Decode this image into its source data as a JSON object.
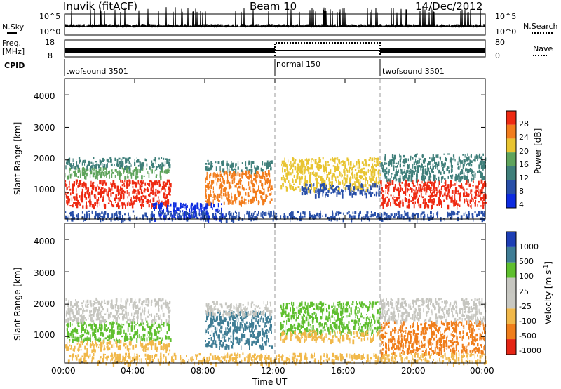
{
  "header": {
    "station": "Inuvik (fitACF)",
    "beam": "Beam 10",
    "date": "14/Dec/2012"
  },
  "top_panels": {
    "nsky_label": "N.Sky",
    "nsky_ticks": [
      "10^5",
      "10^0"
    ],
    "nsearch_label": "N.Search",
    "nsearch_ticks": [
      "10^5",
      "10^0"
    ],
    "freq_label_1": "Freq.",
    "freq_label_2": "[MHz]",
    "freq_ticks": [
      "18",
      "8"
    ],
    "nave_label": "Nave",
    "nave_ticks": [
      "80",
      "0"
    ],
    "cpid_label": "CPID",
    "cpid_segments": [
      {
        "label": "twofsound 3501",
        "start_hour": 0,
        "end_hour": 12
      },
      {
        "label": "normal 150",
        "start_hour": 12,
        "end_hour": 18
      },
      {
        "label": "twofsound 3501",
        "start_hour": 18,
        "end_hour": 24
      }
    ],
    "freq_level_mhz": {
      "twofsound": 10,
      "normal": 10
    },
    "nave_dotted_level": {
      "normal": 80
    }
  },
  "x_axis": {
    "label": "Time UT",
    "ticks": [
      "00:00",
      "04:00",
      "08:00",
      "12:00",
      "16:00",
      "20:00",
      "00:00"
    ],
    "range_hours": [
      0,
      24
    ],
    "dashed_lines_hours": [
      12,
      18
    ]
  },
  "y_axis": {
    "label": "Slant Range [km]",
    "ticks": [
      "1000",
      "2000",
      "3000",
      "4000"
    ],
    "range_km": [
      180,
      4500
    ]
  },
  "colorbars": {
    "power": {
      "title": "Power [dB]",
      "labels": [
        "4",
        "8",
        "12",
        "16",
        "20",
        "24",
        "28"
      ],
      "colors": [
        "#0d2be0",
        "#284fa8",
        "#3f7f7a",
        "#5fa45c",
        "#e8c431",
        "#f27d1d",
        "#ee2a12"
      ]
    },
    "velocity": {
      "title": "Velocity [m s",
      "title_sup": "-1",
      "title_end": "]",
      "labels": [
        "1000",
        "500",
        "100",
        "25",
        "-25",
        "-100",
        "-500",
        "-1000"
      ],
      "colors": [
        "#1e3fb5",
        "#3f7d95",
        "#5fbf2f",
        "#c6c6c0",
        "#c8c8c2",
        "#f1b84a",
        "#f07e1b",
        "#e52514"
      ]
    }
  },
  "chart_data": {
    "type": "heatmap",
    "title": "Inuvik (fitACF) Beam 10 14/Dec/2012",
    "xlabel": "Time UT",
    "ylabel": "Slant Range [km]",
    "x_range_hours": [
      0,
      24
    ],
    "y_range_km": [
      180,
      4500
    ],
    "panels": [
      {
        "name": "Power [dB]",
        "scatter_regions": [
          {
            "t": [
              0.0,
              6.0
            ],
            "r": [
              600,
              1400
            ],
            "value": "28"
          },
          {
            "t": [
              0.0,
              6.0
            ],
            "r": [
              1500,
              1800
            ],
            "value": "16"
          },
          {
            "t": [
              0.0,
              6.0
            ],
            "r": [
              1800,
              2100
            ],
            "value": "12"
          },
          {
            "t": [
              8.0,
              11.8
            ],
            "r": [
              700,
              1700
            ],
            "value": "24"
          },
          {
            "t": [
              8.0,
              11.8
            ],
            "r": [
              1700,
              2000
            ],
            "value": "12"
          },
          {
            "t": [
              12.3,
              18.0
            ],
            "r": [
              1100,
              2100
            ],
            "value": "20"
          },
          {
            "t": [
              13.5,
              18.0
            ],
            "r": [
              950,
              1300
            ],
            "value": "8"
          },
          {
            "t": [
              18.0,
              24.0
            ],
            "r": [
              600,
              1400
            ],
            "value": "28"
          },
          {
            "t": [
              18.0,
              24.0
            ],
            "r": [
              1400,
              2200
            ],
            "value": "12"
          },
          {
            "t": [
              5.0,
              9.0
            ],
            "r": [
              200,
              700
            ],
            "value": "4"
          },
          {
            "t": [
              0.0,
              24.0
            ],
            "r": [
              200,
              450
            ],
            "value": "8"
          }
        ]
      },
      {
        "name": "Velocity [m s-1]",
        "scatter_regions": [
          {
            "t": [
              0.0,
              6.0
            ],
            "r": [
              900,
              1500
            ],
            "value": "100"
          },
          {
            "t": [
              0.0,
              6.0
            ],
            "r": [
              600,
              900
            ],
            "value": "-100"
          },
          {
            "t": [
              0.0,
              6.0
            ],
            "r": [
              1500,
              2200
            ],
            "value": "25"
          },
          {
            "t": [
              8.0,
              11.8
            ],
            "r": [
              700,
              1800
            ],
            "value": "500"
          },
          {
            "t": [
              8.0,
              11.8
            ],
            "r": [
              1700,
              2100
            ],
            "value": "25"
          },
          {
            "t": [
              12.3,
              18.0
            ],
            "r": [
              1100,
              2100
            ],
            "value": "100"
          },
          {
            "t": [
              12.3,
              18.0
            ],
            "r": [
              900,
              1200
            ],
            "value": "-100"
          },
          {
            "t": [
              18.0,
              24.0
            ],
            "r": [
              500,
              1500
            ],
            "value": "-500"
          },
          {
            "t": [
              18.0,
              24.0
            ],
            "r": [
              1500,
              2200
            ],
            "value": "25"
          },
          {
            "t": [
              0.0,
              24.0
            ],
            "r": [
              200,
              500
            ],
            "value": "-100"
          }
        ]
      }
    ]
  }
}
